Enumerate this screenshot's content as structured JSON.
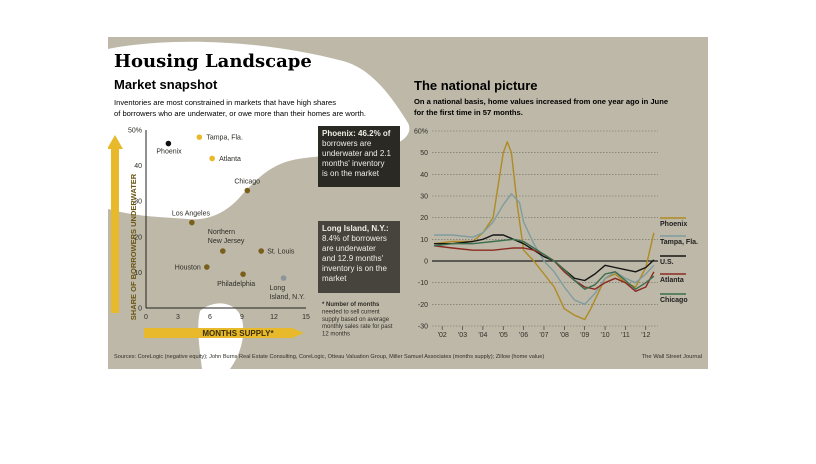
{
  "header": {
    "title": "Housing Landscape",
    "subtitle": "Market snapshot",
    "description_line1": "Inventories are most constrained in markets that have high shares",
    "description_line2": "of borrowers who are underwater, or owe more than their homes are worth."
  },
  "right_header": {
    "title": "The national picture",
    "description_line1": "On a national basis, home values increased from one year ago in June",
    "description_line2": "for the first time in 57 months."
  },
  "callouts": {
    "phoenix": {
      "lines": [
        "Phoenix: 46.2% of",
        "borrowers are",
        "underwater and 2.1",
        "months' inventory",
        "is on the market"
      ]
    },
    "long_island": {
      "lines": [
        "Long Island, N.Y.:",
        "8.4% of borrowers",
        "are underwater",
        "and 12.9 months'",
        "inventory is on the",
        "market"
      ]
    },
    "footnote": [
      "* Number of months",
      "needed to sell current",
      "supply based on average",
      "monthly sales rate for past",
      "12 months"
    ]
  },
  "source": "Sources: CoreLogic (negative equity); John Burns Real Estate Consulting, CoreLogic, Otteau Valuation Group, Miller Samuel Associates (months supply); Zillow (home value)",
  "credit": "The Wall Street Journal",
  "colors": {
    "background": "#bdb8a8",
    "header_bg": "#2a2924",
    "phoenix": "#b08a22",
    "tampa": "#7f9ca0",
    "us": "#161616",
    "atlanta": "#8c2a22",
    "chicago": "#3d6e4e",
    "marker": "#7a5f1c",
    "highlight": "#e8b92a"
  },
  "chart_data": [
    {
      "type": "scatter",
      "xlabel": "MONTHS SUPPLY*",
      "ylabel": "SHARE OF BORROWERS UNDERWATER",
      "xlim": [
        0,
        15
      ],
      "ylim": [
        0,
        50
      ],
      "x_ticks": [
        "0",
        "3",
        "6",
        "9",
        "12",
        "15"
      ],
      "y_ticks": [
        "0",
        "10",
        "20",
        "30",
        "40",
        "50%"
      ],
      "points": [
        {
          "label": "Phoenix",
          "x": 2.1,
          "y": 46.2
        },
        {
          "label": "Tampa, Fla.",
          "x": 5.0,
          "y": 48
        },
        {
          "label": "Atlanta",
          "x": 6.2,
          "y": 42
        },
        {
          "label": "Chicago",
          "x": 9.5,
          "y": 33
        },
        {
          "label": "Los Angeles",
          "x": 4.3,
          "y": 24
        },
        {
          "label": "Northern New Jersey",
          "x": 7.2,
          "y": 16
        },
        {
          "label": "St. Louis",
          "x": 10.8,
          "y": 16
        },
        {
          "label": "Houston",
          "x": 5.7,
          "y": 11.5
        },
        {
          "label": "Philadelphia",
          "x": 9.1,
          "y": 9.5
        },
        {
          "label": "Long Island, N.Y.",
          "x": 12.9,
          "y": 8.4
        }
      ]
    },
    {
      "type": "line",
      "xlim": [
        2001.5,
        2012.6
      ],
      "ylim": [
        -30,
        60
      ],
      "x_ticks": [
        "'02",
        "'03",
        "'04",
        "'05",
        "'06",
        "'07",
        "'08",
        "'09",
        "'10",
        "'11",
        "'12"
      ],
      "y_ticks": [
        "-30",
        "-20",
        "-10",
        "0",
        "10",
        "20",
        "30",
        "40",
        "50",
        "60%"
      ],
      "series": [
        {
          "name": "Phoenix",
          "x": [
            2001.6,
            2002.5,
            2003.5,
            2004.0,
            2004.5,
            2004.8,
            2005.0,
            2005.2,
            2005.4,
            2005.7,
            2006.0,
            2006.5,
            2007.0,
            2007.5,
            2008.0,
            2008.5,
            2009.0,
            2009.3,
            2009.7,
            2010.0,
            2010.5,
            2011.0,
            2011.5,
            2012.0,
            2012.4
          ],
          "y": [
            8,
            9,
            9,
            13,
            20,
            38,
            50,
            55,
            50,
            25,
            5,
            0,
            -6,
            -12,
            -22,
            -25,
            -27,
            -22,
            -14,
            -8,
            -6,
            -10,
            -12,
            -3,
            13
          ]
        },
        {
          "name": "Tampa, Fla.",
          "x": [
            2001.6,
            2002.5,
            2003.5,
            2004.0,
            2004.5,
            2005.0,
            2005.4,
            2005.8,
            2006.0,
            2006.5,
            2007.0,
            2007.5,
            2008.0,
            2008.5,
            2009.0,
            2009.5,
            2010.0,
            2010.5,
            2011.0,
            2011.5,
            2012.0,
            2012.4
          ],
          "y": [
            12,
            12,
            11,
            13,
            18,
            26,
            31,
            27,
            18,
            8,
            0,
            -5,
            -12,
            -18,
            -20,
            -15,
            -8,
            -5,
            -8,
            -10,
            -6,
            -2
          ]
        },
        {
          "name": "U.S.",
          "x": [
            2001.6,
            2002.5,
            2003.5,
            2004.0,
            2004.5,
            2005.0,
            2005.5,
            2006.0,
            2006.5,
            2007.0,
            2007.5,
            2008.0,
            2008.5,
            2009.0,
            2009.5,
            2010.0,
            2010.5,
            2011.0,
            2011.5,
            2012.0,
            2012.4
          ],
          "y": [
            8,
            8,
            9,
            10,
            12,
            12,
            10,
            8,
            5,
            2,
            0,
            -4,
            -8,
            -9,
            -6,
            -2,
            -3,
            -4,
            -5,
            -3,
            0.5
          ]
        },
        {
          "name": "Atlanta",
          "x": [
            2001.6,
            2002.5,
            2003.5,
            2004.5,
            2005.5,
            2006.0,
            2006.5,
            2007.0,
            2007.5,
            2008.0,
            2008.5,
            2009.0,
            2009.5,
            2010.0,
            2010.5,
            2011.0,
            2011.5,
            2012.0,
            2012.4
          ],
          "y": [
            7,
            6,
            5,
            5,
            6,
            6,
            5,
            3,
            0,
            -5,
            -9,
            -12,
            -13,
            -10,
            -8,
            -10,
            -14,
            -12,
            -5
          ]
        },
        {
          "name": "Chicago",
          "x": [
            2001.6,
            2002.5,
            2003.5,
            2004.5,
            2005.5,
            2006.0,
            2006.5,
            2007.0,
            2007.5,
            2008.0,
            2008.5,
            2009.0,
            2009.5,
            2010.0,
            2010.5,
            2011.0,
            2011.5,
            2012.0,
            2012.4
          ],
          "y": [
            7,
            8,
            8,
            9,
            10,
            9,
            6,
            3,
            0,
            -4,
            -9,
            -13,
            -11,
            -6,
            -5,
            -9,
            -13,
            -10,
            -7
          ]
        }
      ]
    }
  ]
}
